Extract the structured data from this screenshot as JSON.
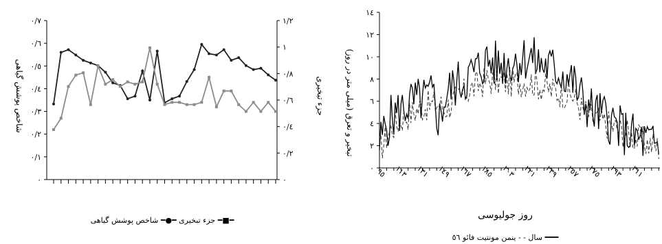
{
  "chart_data": [
    {
      "type": "line",
      "title": "",
      "x": [
        1,
        2,
        3,
        4,
        5,
        6,
        7,
        8,
        9,
        10,
        11,
        12,
        13,
        14,
        15,
        16,
        17,
        18,
        19,
        20,
        21,
        22,
        23,
        24,
        25,
        26,
        27,
        28,
        29,
        30,
        31
      ],
      "y_left": {
        "label": "شاخص پوشش گیاهی",
        "ylim": [
          0,
          0.7
        ],
        "ticks": [
          "٠",
          "٠/١",
          "٠/٢",
          "٠/٣",
          "٠/٤",
          "٠/٥",
          "٠/٦",
          "٠/٧"
        ]
      },
      "y_right": {
        "label": "جزء تبخیری",
        "ylim": [
          0,
          1.2
        ],
        "ticks": [
          "٠",
          "٠/٢",
          "٠/٤",
          "٠/٦",
          "٠/٨",
          "١",
          "١/٢"
        ]
      },
      "series": [
        {
          "name": "جزء تبخیری",
          "axis": "right",
          "color": "#222222",
          "values": [
            0.57,
            0.96,
            0.98,
            0.94,
            0.9,
            0.88,
            0.86,
            0.81,
            0.73,
            0.71,
            0.61,
            0.63,
            0.82,
            0.6,
            0.97,
            0.58,
            0.61,
            0.63,
            0.74,
            0.83,
            1.02,
            0.95,
            0.94,
            0.98,
            0.9,
            0.92,
            0.86,
            0.83,
            0.84,
            0.79,
            0.75
          ]
        },
        {
          "name": "شاخص پوشش گیاهی",
          "axis": "left",
          "color": "#8c8c8c",
          "values": [
            0.22,
            0.27,
            0.41,
            0.46,
            0.47,
            0.33,
            0.5,
            0.42,
            0.44,
            0.41,
            0.43,
            0.42,
            0.43,
            0.58,
            0.42,
            0.33,
            0.34,
            0.34,
            0.33,
            0.33,
            0.34,
            0.45,
            0.32,
            0.39,
            0.39,
            0.33,
            0.3,
            0.34,
            0.3,
            0.34,
            0.3
          ]
        }
      ],
      "legend": [
        "جزء تبخیری",
        "شاخص پوشش گیاهی"
      ],
      "legend_placement": "bottom"
    },
    {
      "type": "line",
      "title": "",
      "xlabel": "روز جولیوسی",
      "ylabel": "تبخیر و تعرق (میلی متر در روز)",
      "xlim": [
        95,
        330
      ],
      "ylim": [
        0,
        14
      ],
      "x_ticks": [
        "٩٥",
        "١١٣",
        "١٣١",
        "١٤٩",
        "١٦٧",
        "١٨٥",
        "٢٠٣",
        "٢٢١",
        "٢٣٩",
        "٢٥٧",
        "٢٧٥",
        "٢٩٣",
        "٣١١"
      ],
      "y_ticks": [
        "٠",
        "٢",
        "٤",
        "٦",
        "٨",
        "١٠",
        "١٢",
        "١٤"
      ],
      "series": [
        {
          "name": "ینمن مونتیت فائو ٥٦",
          "style": "solid",
          "anchors": [
            [
              95,
              2.0
            ],
            [
              100,
              3.8
            ],
            [
              105,
              4.5
            ],
            [
              113,
              5.2
            ],
            [
              120,
              5.8
            ],
            [
              131,
              6.1
            ],
            [
              140,
              6.5
            ],
            [
              145,
              4.2
            ],
            [
              149,
              6.0
            ],
            [
              155,
              7.2
            ],
            [
              167,
              8.0
            ],
            [
              175,
              8.7
            ],
            [
              185,
              9.6
            ],
            [
              195,
              9.2
            ],
            [
              203,
              9.5
            ],
            [
              212,
              9.8
            ],
            [
              221,
              10.0
            ],
            [
              228,
              9.4
            ],
            [
              239,
              9.0
            ],
            [
              250,
              8.4
            ],
            [
              257,
              7.8
            ],
            [
              262,
              6.6
            ],
            [
              268,
              5.8
            ],
            [
              275,
              5.0
            ],
            [
              285,
              4.6
            ],
            [
              293,
              3.8
            ],
            [
              300,
              3.2
            ],
            [
              305,
              3.0
            ],
            [
              311,
              2.6
            ],
            [
              318,
              2.4
            ],
            [
              325,
              2.0
            ],
            [
              330,
              1.8
            ]
          ]
        },
        {
          "name": "سال",
          "style": "dashed",
          "anchors": [
            [
              95,
              1.6
            ],
            [
              105,
              3.6
            ],
            [
              113,
              4.4
            ],
            [
              131,
              5.5
            ],
            [
              145,
              5.8
            ],
            [
              149,
              5.3
            ],
            [
              167,
              6.8
            ],
            [
              185,
              7.9
            ],
            [
              203,
              7.7
            ],
            [
              221,
              7.8
            ],
            [
              239,
              7.0
            ],
            [
              257,
              6.5
            ],
            [
              265,
              5.2
            ],
            [
              275,
              4.5
            ],
            [
              293,
              3.6
            ],
            [
              311,
              2.6
            ],
            [
              330,
              1.8
            ]
          ]
        }
      ],
      "legend": [
        "ینمن مونتیت فائو ٥٦",
        "سال"
      ],
      "legend_placement": "bottom"
    }
  ],
  "legend_text": {
    "left": "جزء تبخیری ━●━  شاخص پوشش گیاهی ━■━",
    "right": "سال - - ینمن مونتیت فائو ٥٦ ━━━"
  }
}
